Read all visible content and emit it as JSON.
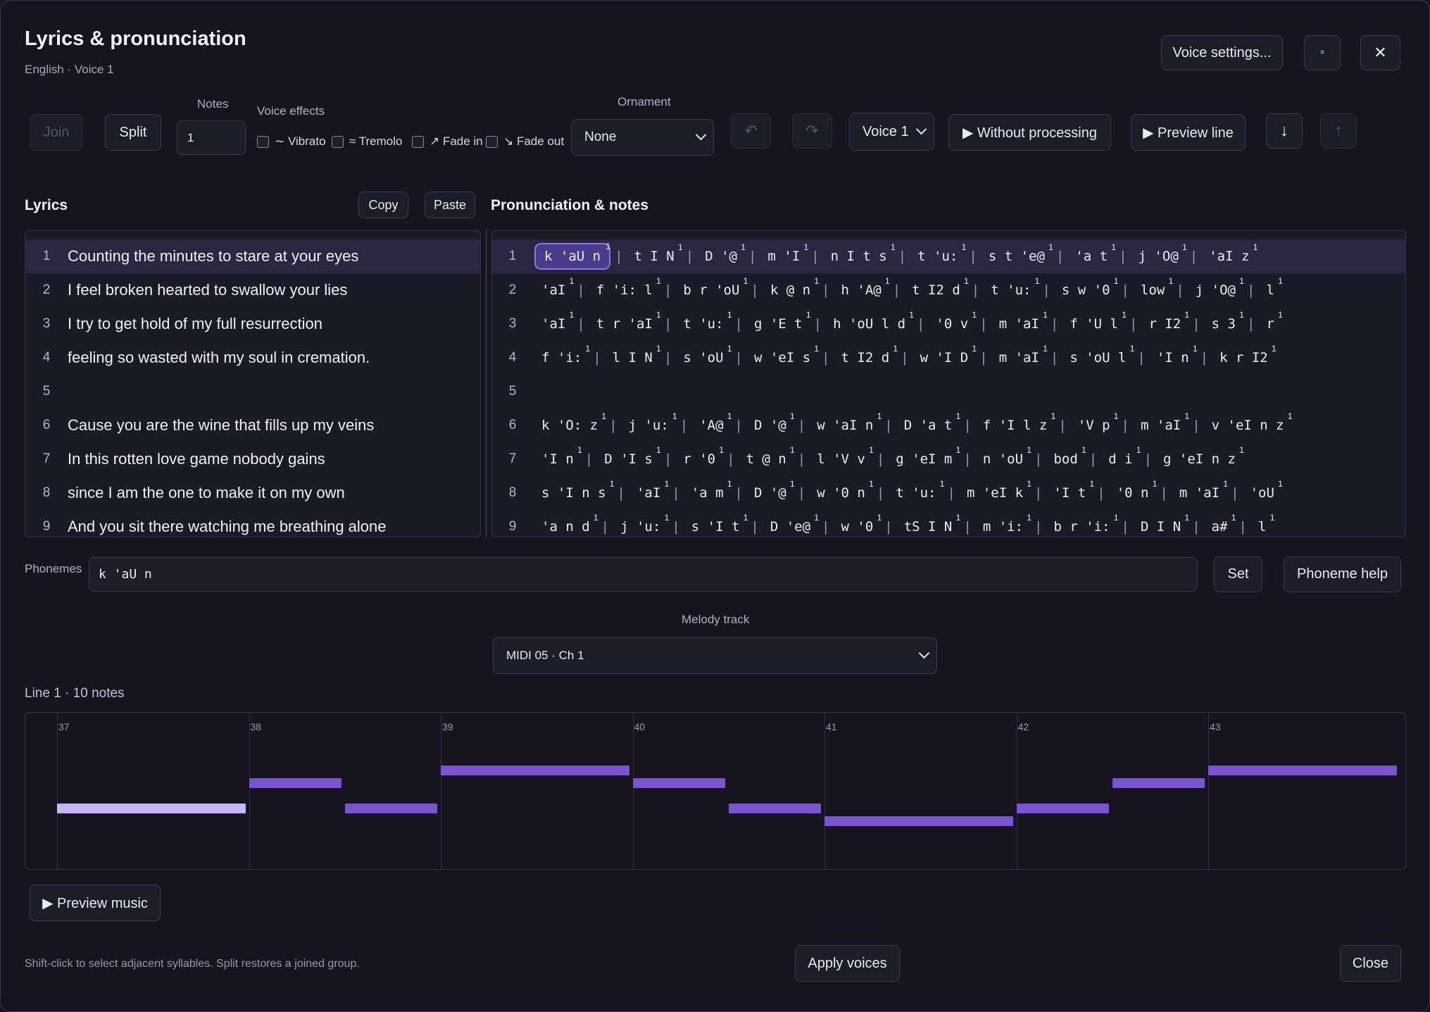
{
  "dialog": {
    "title": "Lyrics & pronunciation",
    "subtitle": "English · Voice 1",
    "voice_settings_label": "Voice settings...",
    "maximize_glyph": "▫",
    "close_glyph": "✕"
  },
  "toolbar": {
    "join_label": "Join",
    "split_label": "Split",
    "notes_label": "Notes",
    "notes_value": "1",
    "voice_effects_label": "Voice effects",
    "effects": [
      {
        "label": "∼ Vibrato"
      },
      {
        "label": "≈ Tremolo"
      },
      {
        "label": "↗ Fade in"
      },
      {
        "label": "↘ Fade out"
      }
    ],
    "ornament_label": "Ornament",
    "ornament_value": "None",
    "undo_glyph": "↶",
    "redo_glyph": "↷",
    "voice_value": "Voice 1",
    "without_processing_label": "▶ Without processing",
    "preview_line_label": "▶ Preview line",
    "down_glyph": "↓",
    "up_glyph": "↑"
  },
  "lyrics": {
    "heading": "Lyrics",
    "copy_label": "Copy",
    "paste_label": "Paste",
    "lines": [
      {
        "n": "1",
        "text": "Counting the minutes to stare at your eyes"
      },
      {
        "n": "2",
        "text": "I feel broken hearted to swallow your lies"
      },
      {
        "n": "3",
        "text": "I try to get hold of my full resurrection"
      },
      {
        "n": "4",
        "text": "feeling so wasted with my soul in cremation."
      },
      {
        "n": "5",
        "text": ""
      },
      {
        "n": "6",
        "text": "Cause you are the wine that fills up my veins"
      },
      {
        "n": "7",
        "text": "In this rotten love game nobody gains"
      },
      {
        "n": "8",
        "text": "since I am the one to make it on my own"
      },
      {
        "n": "9",
        "text": "And you sit there watching me breathing alone"
      }
    ]
  },
  "pronunciation": {
    "heading": "Pronunciation & notes",
    "rows": [
      {
        "n": "1",
        "syllables": [
          "k 'aU n",
          "t I N",
          "D '@",
          "m 'I",
          "n I t s",
          "t 'u:",
          "s t 'e@",
          "'a t",
          "j 'O@",
          "'aI z"
        ]
      },
      {
        "n": "2",
        "syllables": [
          "'aI",
          "f 'i: l",
          "b r 'oU",
          "k @ n",
          "h 'A@",
          "t I2 d",
          "t 'u:",
          "s w '0",
          "low",
          "j 'O@",
          "l"
        ]
      },
      {
        "n": "3",
        "syllables": [
          "'aI",
          "t r 'aI",
          "t 'u:",
          "g 'E t",
          "h 'oU l d",
          "'0 v",
          "m 'aI",
          "f 'U l",
          "r I2",
          "s 3",
          "r"
        ]
      },
      {
        "n": "4",
        "syllables": [
          "f 'i:",
          "l I N",
          "s 'oU",
          "w 'eI s",
          "t I2 d",
          "w 'I D",
          "m 'aI",
          "s 'oU l",
          "'I n",
          "k r I2"
        ]
      },
      {
        "n": "5",
        "syllables": []
      },
      {
        "n": "6",
        "syllables": [
          "k 'O: z",
          "j 'u:",
          "'A@",
          "D '@",
          "w 'aI n",
          "D 'a t",
          "f 'I l z",
          "'V p",
          "m 'aI",
          "v 'eI n z"
        ]
      },
      {
        "n": "7",
        "syllables": [
          "'I n",
          "D 'I s",
          "r '0",
          "t @ n",
          "l 'V v",
          "g 'eI m",
          "n 'oU",
          "bod",
          "d i",
          "g 'eI n z"
        ]
      },
      {
        "n": "8",
        "syllables": [
          "s 'I n s",
          "'aI",
          "'a m",
          "D '@",
          "w '0 n",
          "t 'u:",
          "m 'eI k",
          "'I t",
          "'0 n",
          "m 'aI",
          "'oU"
        ]
      },
      {
        "n": "9",
        "syllables": [
          "'a n d",
          "j 'u:",
          "s 'I t",
          "D 'e@",
          "w '0",
          "tS I N",
          "m 'i:",
          "b r 'i:",
          "D I N",
          "a#",
          "l"
        ]
      }
    ],
    "note_mark": "1"
  },
  "phonemes": {
    "label": "Phonemes",
    "value": "k 'aU n",
    "set_label": "Set",
    "help_label": "Phoneme help"
  },
  "melody": {
    "label": "Melody track",
    "value": "MIDI 05 · Ch 1",
    "info": "Line 1 · 10 notes",
    "preview_music_label": "▶ Preview music"
  },
  "chart_data": {
    "type": "piano-roll",
    "x_ticks": [
      "37",
      "38",
      "39",
      "40",
      "41",
      "42",
      "43"
    ],
    "notes": [
      {
        "start": 37.0,
        "end": 38.0,
        "pitch_level": 1,
        "highlighted": true
      },
      {
        "start": 38.0,
        "end": 38.5,
        "pitch_level": 3
      },
      {
        "start": 38.5,
        "end": 39.0,
        "pitch_level": 1
      },
      {
        "start": 39.0,
        "end": 40.0,
        "pitch_level": 4
      },
      {
        "start": 40.0,
        "end": 40.5,
        "pitch_level": 3
      },
      {
        "start": 40.5,
        "end": 41.0,
        "pitch_level": 1
      },
      {
        "start": 41.0,
        "end": 42.0,
        "pitch_level": 0
      },
      {
        "start": 42.0,
        "end": 42.5,
        "pitch_level": 1
      },
      {
        "start": 42.5,
        "end": 43.0,
        "pitch_level": 3
      },
      {
        "start": 43.0,
        "end": 44.0,
        "pitch_level": 4
      }
    ]
  },
  "footer": {
    "hint": "Shift-click to select adjacent syllables. Split restores a joined group.",
    "apply_label": "Apply voices",
    "close_label": "Close"
  },
  "colors": {
    "accent": "#7b54d6",
    "accent_light": "#c8b4fb",
    "background": "#16151f"
  }
}
